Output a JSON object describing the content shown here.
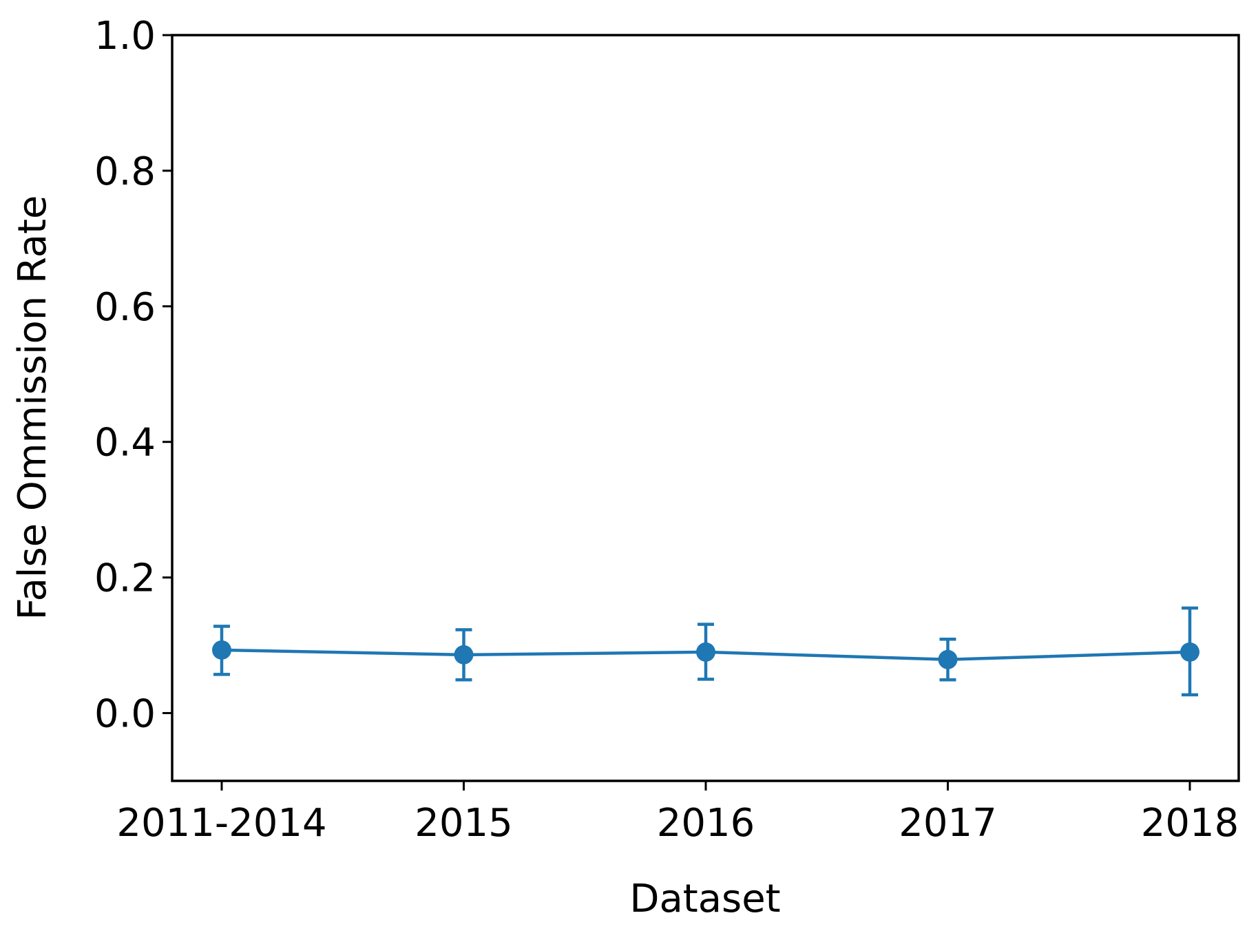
{
  "chart_data": {
    "type": "line",
    "title": "",
    "xlabel": "Dataset",
    "ylabel": "False Ommission Rate",
    "categories": [
      "2011-2014",
      "2015",
      "2016",
      "2017",
      "2018"
    ],
    "series": [
      {
        "values": [
          0.093,
          0.086,
          0.09,
          0.079,
          0.09
        ],
        "error_lower": [
          0.057,
          0.049,
          0.05,
          0.049,
          0.027
        ],
        "error_upper": [
          0.128,
          0.123,
          0.131,
          0.109,
          0.155
        ],
        "color": "#1f77b4"
      }
    ],
    "ylim": [
      -0.1,
      1.0
    ],
    "yticks": [
      0.0,
      0.2,
      0.4,
      0.6,
      0.8,
      1.0
    ],
    "ytick_labels": [
      "0.0",
      "0.2",
      "0.4",
      "0.6",
      "0.8",
      "1.0"
    ],
    "grid": false,
    "legend": "none"
  }
}
